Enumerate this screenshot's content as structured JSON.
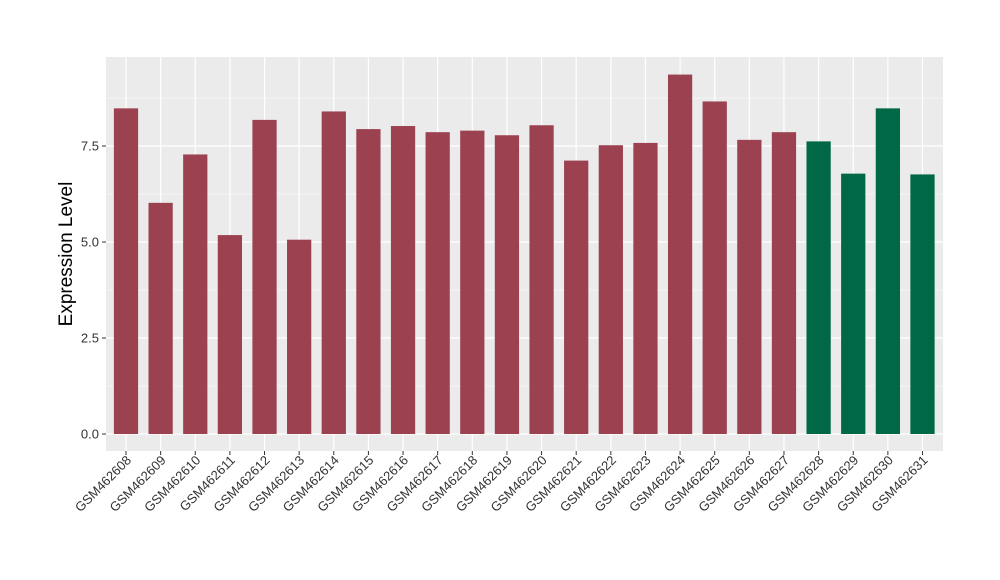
{
  "chart_data": {
    "type": "bar",
    "title": "",
    "xlabel": "",
    "ylabel": "Expression Level",
    "ylim": [
      0,
      9.8
    ],
    "yticks": [
      0.0,
      2.5,
      5.0,
      7.5
    ],
    "ytick_labels": [
      "0.0",
      "2.5",
      "5.0",
      "7.5"
    ],
    "grid": true,
    "legend": "none",
    "panel_background": "#ebebeb",
    "grid_color": "#ffffff",
    "categories": [
      "GSM462608",
      "GSM462609",
      "GSM462610",
      "GSM462611",
      "GSM462612",
      "GSM462613",
      "GSM462614",
      "GSM462615",
      "GSM462616",
      "GSM462617",
      "GSM462618",
      "GSM462619",
      "GSM462620",
      "GSM462621",
      "GSM462622",
      "GSM462623",
      "GSM462624",
      "GSM462625",
      "GSM462626",
      "GSM462627",
      "GSM462628",
      "GSM462629",
      "GSM462630",
      "GSM462631"
    ],
    "values": [
      8.48,
      6.02,
      7.28,
      5.18,
      8.18,
      5.06,
      8.4,
      7.94,
      8.02,
      7.86,
      7.9,
      7.78,
      8.04,
      7.12,
      7.52,
      7.58,
      9.36,
      8.66,
      7.66,
      7.86,
      7.62,
      6.78,
      8.48,
      6.76
    ],
    "bar_colors": [
      "#9b4150",
      "#9b4150",
      "#9b4150",
      "#9b4150",
      "#9b4150",
      "#9b4150",
      "#9b4150",
      "#9b4150",
      "#9b4150",
      "#9b4150",
      "#9b4150",
      "#9b4150",
      "#9b4150",
      "#9b4150",
      "#9b4150",
      "#9b4150",
      "#9b4150",
      "#9b4150",
      "#9b4150",
      "#9b4150",
      "#006747",
      "#006747",
      "#006747",
      "#006747"
    ]
  }
}
